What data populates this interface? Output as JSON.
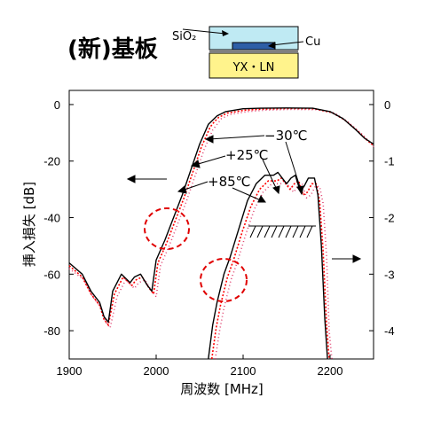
{
  "figure": {
    "title": "(新)基板",
    "xlabel": "周波数 [MHz]",
    "ylabel_left": "挿入損失 [dB]",
    "inset": {
      "top_layer_label": "SiO₂",
      "electrode_label": "Cu",
      "substrate_label": "YX・LN"
    },
    "annotations": [
      "−30℃",
      "+25℃",
      "+85℃"
    ]
  },
  "chart_data": {
    "type": "line",
    "xlim": [
      1900,
      2250
    ],
    "x_ticks": [
      1900,
      2000,
      2100,
      2200
    ],
    "left_axis": {
      "ylim": [
        -90,
        5
      ],
      "ticks": [
        0,
        -20,
        -40,
        -60,
        -80
      ]
    },
    "right_axis": {
      "ylim": [
        -4.5,
        0.25
      ],
      "ticks": [
        0,
        -1,
        -2,
        -3,
        -4
      ]
    },
    "grid": false,
    "colors": {
      "m30": "#000000",
      "p25": "#ff0000",
      "p85": "#e0406f"
    },
    "series_wide": [
      {
        "key": "m30",
        "x": [
          1900,
          1915,
          1925,
          1935,
          1940,
          1945,
          1950,
          1960,
          1970,
          1975,
          1982,
          1990,
          1995,
          2000,
          2010,
          2020,
          2030,
          2040,
          2050,
          2060,
          2065,
          2070,
          2080,
          2100,
          2120,
          2150,
          2180,
          2200,
          2215,
          2230,
          2240,
          2250
        ],
        "y": [
          -56,
          -60,
          -66,
          -70,
          -75,
          -77,
          -66,
          -60,
          -63,
          -61,
          -60,
          -64,
          -66,
          -55,
          -48,
          -40,
          -32,
          -23,
          -14,
          -7,
          -5.5,
          -4,
          -2.5,
          -1.5,
          -1.3,
          -1.2,
          -1.3,
          -2.5,
          -5,
          -9,
          -12,
          -14
        ]
      },
      {
        "key": "p25",
        "x": [
          1900,
          1915,
          1925,
          1935,
          1940,
          1945,
          1952,
          1962,
          1972,
          1977,
          1984,
          1992,
          1997,
          2002,
          2012,
          2022,
          2032,
          2042,
          2052,
          2062,
          2067,
          2072,
          2082,
          2102,
          2122,
          2152,
          2182,
          2202,
          2217,
          2232,
          2242,
          2250
        ],
        "y": [
          -57,
          -61,
          -67,
          -71,
          -76,
          -78,
          -67,
          -61,
          -64,
          -62,
          -61,
          -65,
          -67,
          -56,
          -49,
          -41,
          -33,
          -24,
          -15,
          -8,
          -6,
          -4.5,
          -3,
          -2,
          -1.6,
          -1.4,
          -1.5,
          -2.8,
          -5.5,
          -9.5,
          -12.5,
          -14.5
        ]
      },
      {
        "key": "p85",
        "x": [
          1900,
          1917,
          1927,
          1937,
          1942,
          1947,
          1955,
          1965,
          1975,
          1980,
          1987,
          1995,
          2000,
          2005,
          2015,
          2025,
          2035,
          2045,
          2055,
          2065,
          2070,
          2075,
          2085,
          2105,
          2125,
          2155,
          2185,
          2205,
          2220,
          2235,
          2245,
          2250
        ],
        "y": [
          -58,
          -62,
          -68,
          -72,
          -77,
          -79,
          -68,
          -62,
          -65,
          -63,
          -62,
          -66,
          -68,
          -57,
          -50,
          -42,
          -34,
          -25,
          -16,
          -9,
          -7,
          -5,
          -3.5,
          -2.5,
          -2,
          -1.7,
          -1.8,
          -3,
          -6,
          -10,
          -13,
          -15
        ]
      }
    ],
    "series_narrow": [
      {
        "key": "m30",
        "x": [
          2060,
          2065,
          2070,
          2078,
          2085,
          2095,
          2105,
          2115,
          2125,
          2135,
          2140,
          2145,
          2150,
          2155,
          2160,
          2165,
          2170,
          2175,
          2182,
          2186,
          2190,
          2194,
          2197
        ],
        "y": [
          -4.5,
          -3.9,
          -3.5,
          -3.0,
          -2.7,
          -2.2,
          -1.7,
          -1.4,
          -1.25,
          -1.25,
          -1.2,
          -1.3,
          -1.4,
          -1.3,
          -1.25,
          -1.5,
          -1.45,
          -1.3,
          -1.3,
          -1.6,
          -2.5,
          -3.8,
          -4.5
        ]
      },
      {
        "key": "p25",
        "x": [
          2064,
          2069,
          2074,
          2082,
          2089,
          2099,
          2109,
          2119,
          2129,
          2139,
          2144,
          2149,
          2154,
          2159,
          2164,
          2169,
          2174,
          2179,
          2184,
          2188,
          2192,
          2196,
          2199
        ],
        "y": [
          -4.5,
          -3.95,
          -3.55,
          -3.05,
          -2.75,
          -2.25,
          -1.8,
          -1.5,
          -1.35,
          -1.35,
          -1.3,
          -1.4,
          -1.5,
          -1.4,
          -1.35,
          -1.6,
          -1.55,
          -1.4,
          -1.4,
          -1.7,
          -2.6,
          -3.9,
          -4.5
        ]
      },
      {
        "key": "p85",
        "x": [
          2068,
          2073,
          2078,
          2086,
          2093,
          2103,
          2113,
          2123,
          2133,
          2143,
          2148,
          2153,
          2158,
          2163,
          2168,
          2173,
          2178,
          2183,
          2188,
          2192,
          2196,
          2199,
          2202
        ],
        "y": [
          -4.5,
          -4.0,
          -3.6,
          -3.1,
          -2.8,
          -2.3,
          -1.85,
          -1.55,
          -1.4,
          -1.4,
          -1.35,
          -1.45,
          -1.55,
          -1.45,
          -1.4,
          -1.65,
          -1.6,
          -1.45,
          -1.45,
          -1.75,
          -2.7,
          -4.0,
          -4.5
        ]
      }
    ]
  }
}
